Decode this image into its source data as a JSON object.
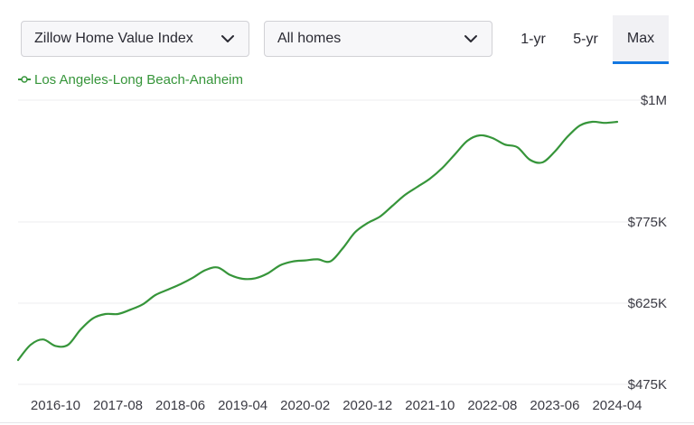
{
  "controls": {
    "metric_select": "Zillow Home Value Index",
    "homes_select": "All homes",
    "ranges": [
      "1-yr",
      "5-yr",
      "Max"
    ],
    "active_range": "Max"
  },
  "colors": {
    "series": "#36953a",
    "active_underline": "#1277e1",
    "gridline": "#ececef"
  },
  "chart_data": {
    "type": "line",
    "title": "",
    "xlabel": "",
    "ylabel": "",
    "ylim": [
      475000,
      1000000
    ],
    "yticks": [
      475000,
      625000,
      775000,
      1000000
    ],
    "ytick_labels": [
      "$475K",
      "$625K",
      "$775K",
      "$1M"
    ],
    "xticks": [
      "2016-10",
      "2017-08",
      "2018-06",
      "2019-04",
      "2020-02",
      "2020-12",
      "2021-10",
      "2022-08",
      "2023-06",
      "2024-04"
    ],
    "grid": true,
    "legend": "top-left",
    "series": [
      {
        "name": "Los Angeles-Long Beach-Anaheim",
        "x": [
          "2016-04",
          "2016-06",
          "2016-08",
          "2016-10",
          "2016-12",
          "2017-02",
          "2017-04",
          "2017-06",
          "2017-08",
          "2017-10",
          "2017-12",
          "2018-02",
          "2018-04",
          "2018-06",
          "2018-08",
          "2018-10",
          "2018-12",
          "2019-02",
          "2019-04",
          "2019-06",
          "2019-08",
          "2019-10",
          "2019-12",
          "2020-02",
          "2020-04",
          "2020-06",
          "2020-08",
          "2020-10",
          "2020-12",
          "2021-02",
          "2021-04",
          "2021-06",
          "2021-08",
          "2021-10",
          "2021-12",
          "2022-02",
          "2022-04",
          "2022-06",
          "2022-08",
          "2022-10",
          "2022-12",
          "2023-02",
          "2023-04",
          "2023-06",
          "2023-08",
          "2023-10",
          "2023-12",
          "2024-02",
          "2024-04"
        ],
        "values": [
          520000,
          548000,
          558000,
          546000,
          548000,
          576000,
          597000,
          605000,
          605000,
          613000,
          623000,
          640000,
          650000,
          660000,
          672000,
          686000,
          691000,
          677000,
          670000,
          671000,
          680000,
          695000,
          702000,
          704000,
          706000,
          702000,
          726000,
          756000,
          773000,
          785000,
          805000,
          825000,
          840000,
          855000,
          875000,
          900000,
          925000,
          935000,
          930000,
          918000,
          913000,
          890000,
          885000,
          905000,
          932000,
          953000,
          960000,
          958000,
          960000
        ]
      }
    ]
  }
}
